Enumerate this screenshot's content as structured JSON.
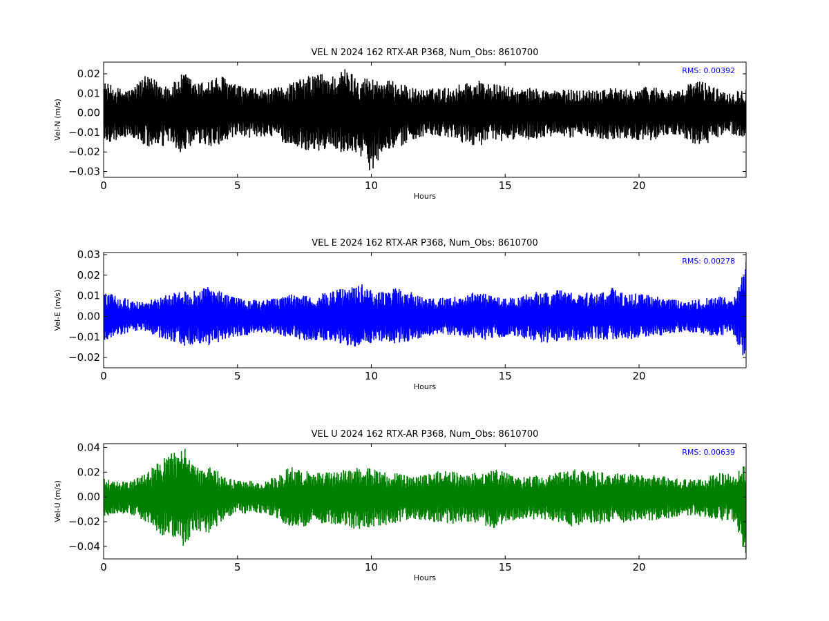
{
  "chart_data": [
    {
      "type": "line",
      "title": "VEL N 2024 162 RTX-AR  P368, Num_Obs: 8610700",
      "xlabel": "Hours",
      "ylabel": "Vel-N (m/s)",
      "xlim": [
        0,
        24
      ],
      "ylim": [
        -0.033,
        0.026
      ],
      "xticks": [
        0,
        5,
        10,
        15,
        20
      ],
      "xtick_labels": [
        "0",
        "5",
        "10",
        "15",
        "20"
      ],
      "yticks": [
        -0.03,
        -0.02,
        -0.01,
        0.0,
        0.01,
        0.02
      ],
      "ytick_labels": [
        "−0.03",
        "−0.02",
        "−0.01",
        "0.00",
        "0.01",
        "0.02"
      ],
      "color": "#000000",
      "annotation": "RMS:  0.00392",
      "annotation_color": "#0000ff",
      "grid": false,
      "series": [
        {
          "x": [
            0,
            0.5,
            1,
            1.5,
            2,
            2.5,
            3,
            3.5,
            4,
            4.5,
            5,
            5.5,
            6,
            6.5,
            7,
            7.5,
            8,
            8.5,
            9,
            9.5,
            10,
            10.5,
            11,
            11.5,
            12,
            12.5,
            13,
            13.5,
            14,
            14.5,
            15,
            15.5,
            16,
            16.5,
            17,
            17.5,
            18,
            18.5,
            19,
            19.5,
            20,
            20.5,
            21,
            21.5,
            22,
            22.5,
            23,
            23.5,
            24
          ],
          "upper": [
            0.016,
            0.013,
            0.012,
            0.019,
            0.017,
            0.014,
            0.021,
            0.015,
            0.018,
            0.019,
            0.014,
            0.013,
            0.012,
            0.013,
            0.016,
            0.018,
            0.021,
            0.019,
            0.023,
            0.019,
            0.018,
            0.017,
            0.016,
            0.013,
            0.012,
            0.013,
            0.013,
            0.016,
            0.017,
            0.015,
            0.014,
            0.012,
            0.013,
            0.012,
            0.012,
            0.012,
            0.012,
            0.013,
            0.013,
            0.012,
            0.013,
            0.014,
            0.012,
            0.011,
            0.017,
            0.016,
            0.012,
            0.011,
            0.013
          ],
          "lower": [
            -0.016,
            -0.014,
            -0.012,
            -0.017,
            -0.019,
            -0.016,
            -0.022,
            -0.016,
            -0.018,
            -0.015,
            -0.013,
            -0.013,
            -0.012,
            -0.014,
            -0.017,
            -0.019,
            -0.02,
            -0.018,
            -0.021,
            -0.02,
            -0.031,
            -0.018,
            -0.019,
            -0.014,
            -0.012,
            -0.013,
            -0.013,
            -0.016,
            -0.017,
            -0.015,
            -0.015,
            -0.013,
            -0.014,
            -0.013,
            -0.012,
            -0.013,
            -0.012,
            -0.013,
            -0.014,
            -0.013,
            -0.014,
            -0.014,
            -0.012,
            -0.011,
            -0.016,
            -0.017,
            -0.012,
            -0.011,
            -0.013
          ]
        }
      ]
    },
    {
      "type": "line",
      "title": "VEL E 2024 162 RTX-AR  P368, Num_Obs: 8610700",
      "xlabel": "Hours",
      "ylabel": "Vel-E (m/s)",
      "xlim": [
        0,
        24
      ],
      "ylim": [
        -0.025,
        0.031
      ],
      "xticks": [
        0,
        5,
        10,
        15,
        20
      ],
      "xtick_labels": [
        "0",
        "5",
        "10",
        "15",
        "20"
      ],
      "yticks": [
        -0.02,
        -0.01,
        0.0,
        0.01,
        0.02,
        0.03
      ],
      "ytick_labels": [
        "−0.02",
        "−0.01",
        "0.00",
        "0.01",
        "0.02",
        "0.03"
      ],
      "color": "#0000ff",
      "annotation": "RMS:  0.00278",
      "annotation_color": "#0000ff",
      "grid": false,
      "series": [
        {
          "x": [
            0,
            0.5,
            1,
            1.5,
            2,
            2.5,
            3,
            3.5,
            4,
            4.5,
            5,
            5.5,
            6,
            6.5,
            7,
            7.5,
            8,
            8.5,
            9,
            9.5,
            10,
            10.5,
            11,
            11.5,
            12,
            12.5,
            13,
            13.5,
            14,
            14.5,
            15,
            15.5,
            16,
            16.5,
            17,
            17.5,
            18,
            18.5,
            19,
            19.5,
            20,
            20.5,
            21,
            21.5,
            22,
            22.5,
            23,
            23.5,
            24
          ],
          "upper": [
            0.012,
            0.01,
            0.008,
            0.007,
            0.009,
            0.011,
            0.013,
            0.013,
            0.015,
            0.011,
            0.009,
            0.008,
            0.008,
            0.009,
            0.011,
            0.01,
            0.011,
            0.012,
            0.014,
            0.017,
            0.013,
            0.012,
            0.014,
            0.012,
            0.01,
            0.009,
            0.009,
            0.011,
            0.012,
            0.01,
            0.009,
            0.009,
            0.012,
            0.012,
            0.013,
            0.013,
            0.012,
            0.011,
            0.014,
            0.011,
            0.011,
            0.01,
            0.009,
            0.008,
            0.008,
            0.009,
            0.01,
            0.008,
            0.03
          ],
          "lower": [
            -0.013,
            -0.011,
            -0.008,
            -0.007,
            -0.01,
            -0.012,
            -0.015,
            -0.013,
            -0.015,
            -0.011,
            -0.01,
            -0.009,
            -0.008,
            -0.009,
            -0.011,
            -0.012,
            -0.012,
            -0.012,
            -0.014,
            -0.015,
            -0.013,
            -0.012,
            -0.014,
            -0.012,
            -0.01,
            -0.009,
            -0.009,
            -0.011,
            -0.012,
            -0.011,
            -0.01,
            -0.01,
            -0.012,
            -0.013,
            -0.012,
            -0.012,
            -0.012,
            -0.011,
            -0.012,
            -0.011,
            -0.011,
            -0.01,
            -0.009,
            -0.008,
            -0.008,
            -0.009,
            -0.01,
            -0.008,
            -0.023
          ]
        }
      ]
    },
    {
      "type": "line",
      "title": "VEL U 2024 162 RTX-AR  P368, Num_Obs: 8610700",
      "xlabel": "Hours",
      "ylabel": "Vel-U (m/s)",
      "xlim": [
        0,
        24
      ],
      "ylim": [
        -0.05,
        0.043
      ],
      "xticks": [
        0,
        5,
        10,
        15,
        20
      ],
      "xtick_labels": [
        "0",
        "5",
        "10",
        "15",
        "20"
      ],
      "yticks": [
        -0.04,
        -0.02,
        0.0,
        0.02,
        0.04
      ],
      "ytick_labels": [
        "−0.04",
        "−0.02",
        "0.00",
        "0.02",
        "0.04"
      ],
      "color": "#008000",
      "annotation": "RMS:  0.00639",
      "annotation_color": "#0000ff",
      "grid": false,
      "series": [
        {
          "x": [
            0,
            0.5,
            1,
            1.5,
            2,
            2.5,
            3,
            3.5,
            4,
            4.5,
            5,
            5.5,
            6,
            6.5,
            7,
            7.5,
            8,
            8.5,
            9,
            9.5,
            10,
            10.5,
            11,
            11.5,
            12,
            12.5,
            13,
            13.5,
            14,
            14.5,
            15,
            15.5,
            16,
            16.5,
            17,
            17.5,
            18,
            18.5,
            19,
            19.5,
            20,
            20.5,
            21,
            21.5,
            22,
            22.5,
            23,
            23.5,
            24
          ],
          "upper": [
            0.015,
            0.013,
            0.013,
            0.018,
            0.027,
            0.035,
            0.041,
            0.025,
            0.026,
            0.017,
            0.013,
            0.013,
            0.013,
            0.017,
            0.025,
            0.022,
            0.02,
            0.02,
            0.022,
            0.024,
            0.023,
            0.021,
            0.02,
            0.016,
            0.018,
            0.021,
            0.021,
            0.018,
            0.02,
            0.023,
            0.02,
            0.016,
            0.017,
            0.018,
            0.02,
            0.023,
            0.022,
            0.021,
            0.02,
            0.019,
            0.018,
            0.018,
            0.017,
            0.015,
            0.014,
            0.016,
            0.02,
            0.018,
            0.028
          ],
          "lower": [
            -0.016,
            -0.014,
            -0.014,
            -0.02,
            -0.029,
            -0.034,
            -0.04,
            -0.027,
            -0.03,
            -0.018,
            -0.013,
            -0.014,
            -0.014,
            -0.018,
            -0.026,
            -0.024,
            -0.021,
            -0.022,
            -0.023,
            -0.027,
            -0.024,
            -0.023,
            -0.021,
            -0.018,
            -0.019,
            -0.022,
            -0.022,
            -0.02,
            -0.021,
            -0.026,
            -0.021,
            -0.018,
            -0.018,
            -0.019,
            -0.021,
            -0.024,
            -0.023,
            -0.022,
            -0.02,
            -0.021,
            -0.019,
            -0.019,
            -0.018,
            -0.016,
            -0.015,
            -0.017,
            -0.02,
            -0.018,
            -0.049
          ]
        }
      ]
    }
  ]
}
